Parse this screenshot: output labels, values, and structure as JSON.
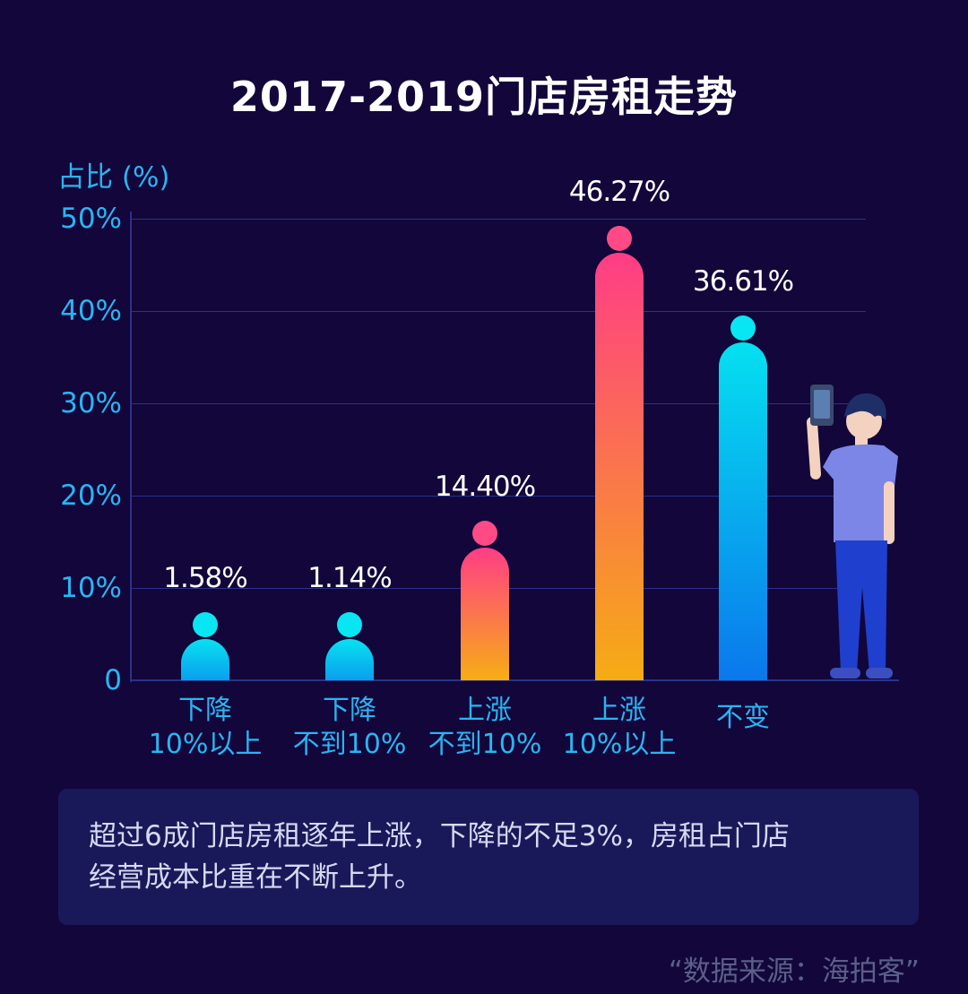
{
  "chart_data": {
    "type": "bar",
    "title": "2017-2019门店房租走势",
    "ylabel": "占比 (%)",
    "ylim": [
      0,
      50
    ],
    "yticks": [
      "0",
      "10%",
      "20%",
      "30%",
      "40%",
      "50%"
    ],
    "categories": [
      [
        "下降",
        "10%以上"
      ],
      [
        "下降",
        "不到10%"
      ],
      [
        "上涨",
        "不到10%"
      ],
      [
        "上涨",
        "10%以上"
      ],
      [
        "不变"
      ]
    ],
    "values": [
      1.58,
      1.14,
      14.4,
      46.27,
      36.61
    ],
    "value_labels": [
      "1.58%",
      "1.14%",
      "14.40%",
      "46.27%",
      "36.61%"
    ],
    "bar_colors": [
      [
        "#08e2f0",
        "#0a9fee"
      ],
      [
        "#08e2f0",
        "#0a9fee"
      ],
      [
        "#ff3d86",
        "#f8ad15"
      ],
      [
        "#ff3d86",
        "#f6ac14"
      ],
      [
        "#05e0f0",
        "#0a78ec"
      ]
    ],
    "dot_colors": [
      "#08e6f2",
      "#08e6f2",
      "#ff4a86",
      "#ff4a86",
      "#08e6f2"
    ]
  },
  "note": {
    "lines": [
      "超过6成门店房租逐年上涨，下降的不足3%，房租占门店",
      "经营成本比重在不断上升。"
    ]
  },
  "source": "“数据来源：海拍客”",
  "colors": {
    "background": "#12063a",
    "axis_text": "#27b6f4",
    "grid": "#2a3388",
    "note_bg": "#19195a"
  }
}
